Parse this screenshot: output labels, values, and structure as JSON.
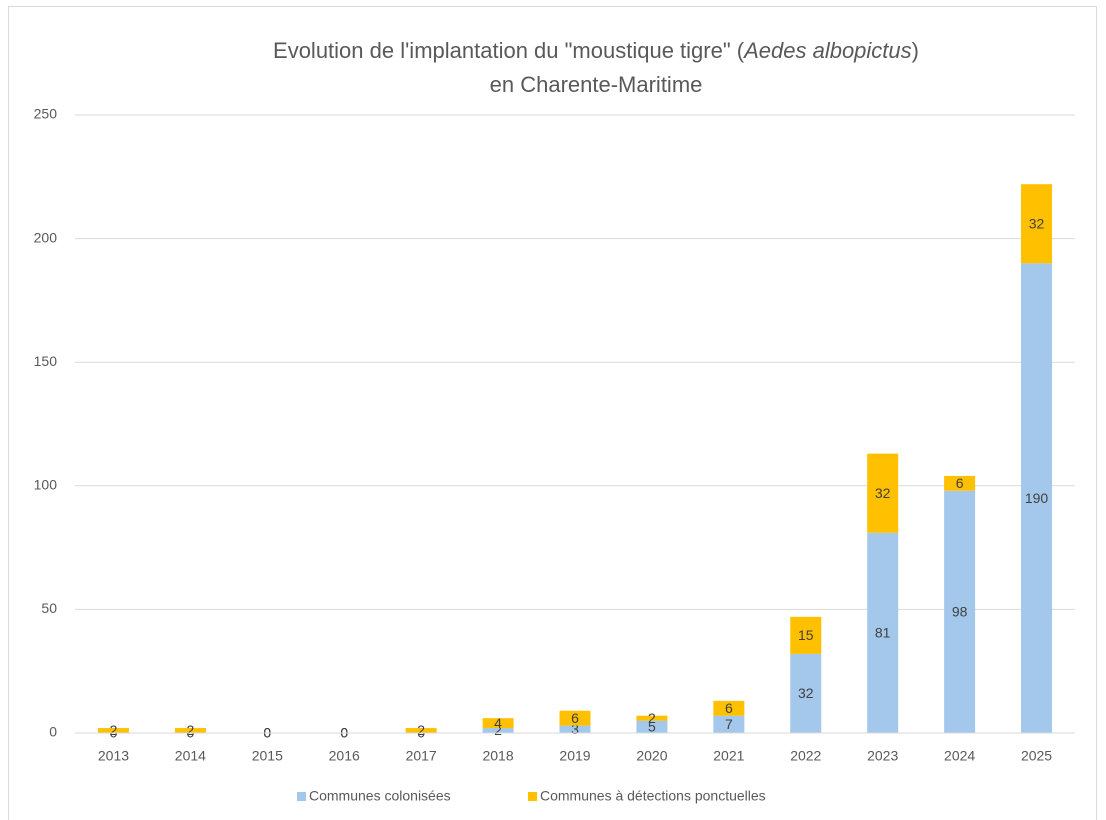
{
  "chart_data": {
    "type": "stacked_bar",
    "title": {
      "before": "Evolution de l'implantation du \"moustique tigre\" (",
      "italic": "Aedes albopictus",
      "after": ")",
      "line2": "en Charente-Maritime"
    },
    "categories": [
      "2013",
      "2014",
      "2015",
      "2016",
      "2017",
      "2018",
      "2019",
      "2020",
      "2021",
      "2022",
      "2023",
      "2024",
      "2025"
    ],
    "series": [
      {
        "name": "Communes colonisées",
        "color": "#a4c8ec",
        "values": [
          0,
          0,
          0,
          0,
          0,
          2,
          3,
          5,
          7,
          32,
          81,
          98,
          190
        ]
      },
      {
        "name": "Communes à détections ponctuelles",
        "color": "#ffc000",
        "values": [
          2,
          2,
          0,
          0,
          2,
          4,
          6,
          2,
          6,
          15,
          32,
          6,
          32
        ]
      }
    ],
    "ylim": [
      0,
      250
    ],
    "yticks": [
      0,
      50,
      100,
      150,
      200,
      250
    ],
    "grid": true,
    "legend": "bottom"
  }
}
